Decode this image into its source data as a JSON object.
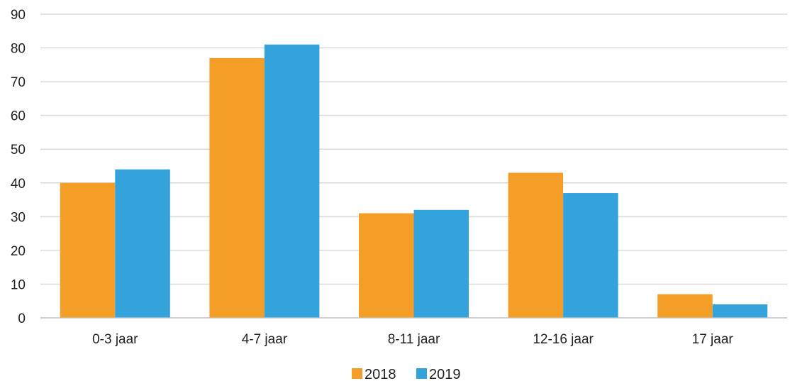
{
  "chart_data": {
    "type": "bar",
    "title": "",
    "xlabel": "",
    "ylabel": "",
    "categories": [
      "0-3 jaar",
      "4-7 jaar",
      "8-11 jaar",
      "12-16 jaar",
      "17 jaar"
    ],
    "series": [
      {
        "name": "2018",
        "color": "#F59E27",
        "values": [
          40,
          77,
          31,
          43,
          7
        ]
      },
      {
        "name": "2019",
        "color": "#34A3DB",
        "values": [
          44,
          81,
          32,
          37,
          4
        ]
      }
    ],
    "ylim": [
      0,
      90
    ],
    "yticks": [
      0,
      10,
      20,
      30,
      40,
      50,
      60,
      70,
      80,
      90
    ],
    "grid": true,
    "legend": "bottom-center"
  }
}
